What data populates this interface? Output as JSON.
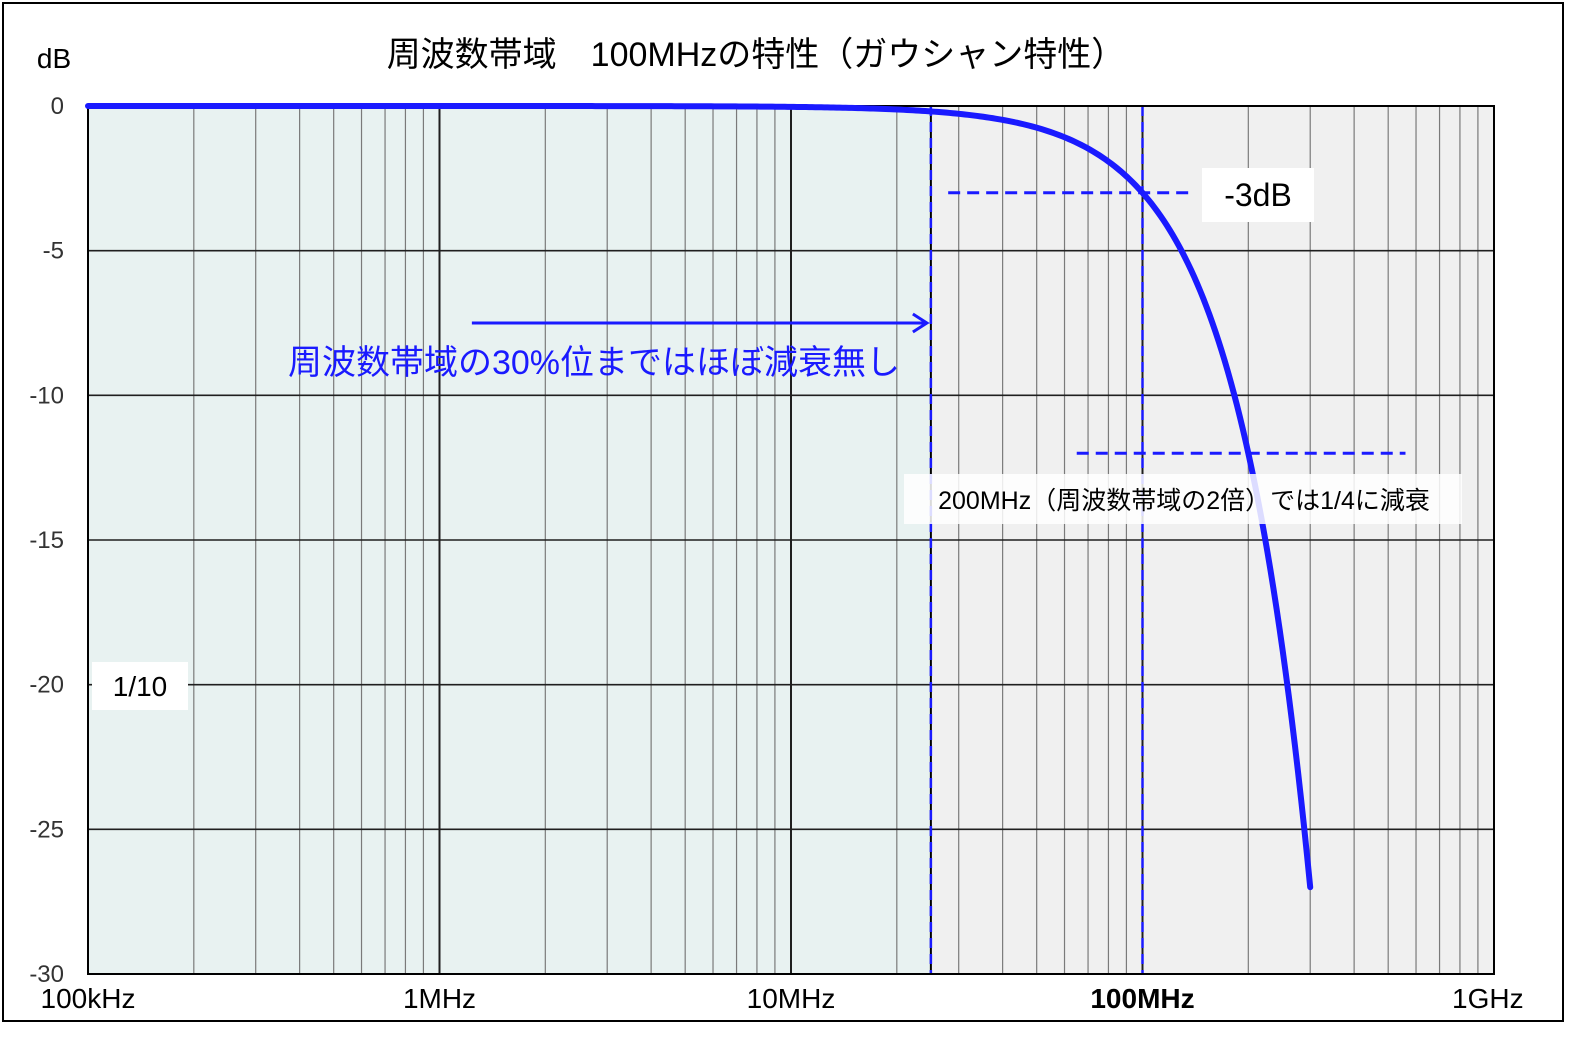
{
  "chart_data": {
    "type": "line",
    "title": "周波数帯域　100MHzの特性（ガウシャン特性）",
    "ylabel": "dB",
    "xscale": "log",
    "xlim_hz": [
      100000,
      1000000000
    ],
    "ylim": [
      -30,
      0
    ],
    "grid": true,
    "x_ticks": [
      {
        "value": 100000,
        "label": "100kHz"
      },
      {
        "value": 1000000,
        "label": "1MHz"
      },
      {
        "value": 10000000,
        "label": "10MHz"
      },
      {
        "value": 100000000,
        "label": "100MHz",
        "highlight": true
      },
      {
        "value": 1000000000,
        "label": "1GHz"
      }
    ],
    "y_ticks": [
      {
        "value": 0,
        "label": "0"
      },
      {
        "value": -5,
        "label": "-5"
      },
      {
        "value": -10,
        "label": "-10"
      },
      {
        "value": -15,
        "label": "-15"
      },
      {
        "value": -20,
        "label": "-20"
      },
      {
        "value": -25,
        "label": "-25"
      },
      {
        "value": -30,
        "label": "-30"
      }
    ],
    "series": [
      {
        "color": "#1a1aff",
        "formula": "gaussian: dB = -3 * (f / 100MHz)^2",
        "f_range_hz": [
          100000,
          300000000
        ]
      }
    ],
    "shaded_region_hz": [
      100000,
      25000000
    ],
    "reference_lines": [
      {
        "kind": "vertical",
        "f_hz": 25000000
      },
      {
        "kind": "vertical",
        "f_hz": 100000000
      },
      {
        "kind": "horizontal",
        "db": -3,
        "f_from_hz": 28000000,
        "f_to_hz": 140000000
      },
      {
        "kind": "horizontal",
        "db": -12,
        "f_from_hz": 65000000,
        "f_to_hz": 560000000
      }
    ],
    "annotations": [
      {
        "text": "-3dB"
      },
      {
        "text": "周波数帯域の30%位まではほぼ減衰無し"
      },
      {
        "text": "200MHz（周波数帯域の2倍）では1/4に減衰"
      },
      {
        "text": "1/10"
      }
    ],
    "colors": {
      "accent": "#1a1aff",
      "plot_bg": "#f0f0f0",
      "shaded_bg": "#e8f2f1",
      "grid_major": "#1f1f1f",
      "grid_minor": "#7a7a7a"
    }
  }
}
